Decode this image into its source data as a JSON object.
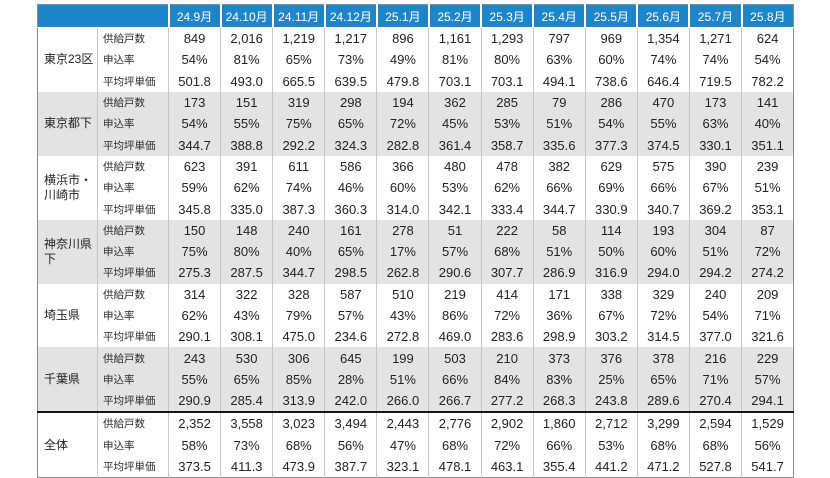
{
  "accent_colors": {
    "header_bg": "#1e86c8",
    "header_text": "#ffffff",
    "row_alt_bg": "#e3e3e3",
    "grid_line": "#c6c6c6",
    "total_separator": "#151515"
  },
  "chart_data": {
    "type": "table",
    "title": "",
    "columns": [
      "24.9月",
      "24.10月",
      "24.11月",
      "24.12月",
      "25.1月",
      "25.2月",
      "25.3月",
      "25.4月",
      "25.5月",
      "25.6月",
      "25.7月",
      "25.8月"
    ],
    "metrics": [
      {
        "key": "supply",
        "label": "供給戸数",
        "format": "int"
      },
      {
        "key": "rate",
        "label": "申込率",
        "format": "percent"
      },
      {
        "key": "price",
        "label": "平均坪単価",
        "format": "decimal1"
      }
    ],
    "groups": [
      {
        "id": "tokyo-23ku",
        "region": "東京23区",
        "is_total": false,
        "supply": [
          849,
          2016,
          1219,
          1217,
          896,
          1161,
          1293,
          797,
          969,
          1354,
          1271,
          624
        ],
        "rate": [
          54,
          81,
          65,
          73,
          49,
          81,
          80,
          63,
          60,
          74,
          74,
          54
        ],
        "price": [
          501.8,
          493.0,
          665.5,
          639.5,
          479.8,
          703.1,
          703.1,
          494.1,
          738.6,
          646.4,
          719.5,
          782.2
        ]
      },
      {
        "id": "tokyo-toka",
        "region": "東京都下",
        "is_total": false,
        "supply": [
          173,
          151,
          319,
          298,
          194,
          362,
          285,
          79,
          286,
          470,
          173,
          141
        ],
        "rate": [
          54,
          55,
          75,
          65,
          72,
          45,
          53,
          51,
          54,
          55,
          63,
          40
        ],
        "price": [
          344.7,
          388.8,
          292.2,
          324.3,
          282.8,
          361.4,
          358.7,
          335.6,
          377.3,
          374.5,
          330.1,
          351.1
        ]
      },
      {
        "id": "yokohama-kawasaki",
        "region": "横浜市・川崎市",
        "is_total": false,
        "supply": [
          623,
          391,
          611,
          586,
          366,
          480,
          478,
          382,
          629,
          575,
          390,
          239
        ],
        "rate": [
          59,
          62,
          74,
          46,
          60,
          53,
          62,
          66,
          69,
          66,
          67,
          51
        ],
        "price": [
          345.8,
          335.0,
          387.3,
          360.3,
          314.0,
          342.1,
          333.4,
          344.7,
          330.9,
          340.7,
          369.2,
          353.1
        ]
      },
      {
        "id": "kanagawa-kenka",
        "region": "神奈川県下",
        "is_total": false,
        "supply": [
          150,
          148,
          240,
          161,
          278,
          51,
          222,
          58,
          114,
          193,
          304,
          87
        ],
        "rate": [
          75,
          80,
          40,
          65,
          17,
          57,
          68,
          51,
          50,
          60,
          51,
          72
        ],
        "price": [
          275.3,
          287.5,
          344.7,
          298.5,
          262.8,
          290.6,
          307.7,
          286.9,
          316.9,
          294.0,
          294.2,
          274.2
        ]
      },
      {
        "id": "saitama",
        "region": "埼玉県",
        "is_total": false,
        "supply": [
          314,
          322,
          328,
          587,
          510,
          219,
          414,
          171,
          338,
          329,
          240,
          209
        ],
        "rate": [
          62,
          43,
          79,
          57,
          43,
          86,
          72,
          36,
          67,
          72,
          54,
          71
        ],
        "price": [
          290.1,
          308.1,
          475.0,
          234.6,
          272.8,
          469.0,
          283.6,
          298.9,
          303.2,
          314.5,
          377.0,
          321.6
        ]
      },
      {
        "id": "chiba",
        "region": "千葉県",
        "is_total": false,
        "supply": [
          243,
          530,
          306,
          645,
          199,
          503,
          210,
          373,
          376,
          378,
          216,
          229
        ],
        "rate": [
          55,
          65,
          85,
          28,
          51,
          66,
          84,
          83,
          25,
          65,
          71,
          57
        ],
        "price": [
          290.9,
          285.4,
          313.9,
          242.0,
          266.0,
          266.7,
          277.2,
          268.3,
          243.8,
          289.6,
          270.4,
          294.1
        ]
      },
      {
        "id": "zentai",
        "region": "全体",
        "is_total": true,
        "supply": [
          2352,
          3558,
          3023,
          3494,
          2443,
          2776,
          2902,
          1860,
          2712,
          3299,
          2594,
          1529
        ],
        "rate": [
          58,
          73,
          68,
          56,
          47,
          68,
          72,
          66,
          53,
          68,
          68,
          56
        ],
        "price": [
          373.5,
          411.3,
          473.9,
          387.7,
          323.1,
          478.1,
          463.1,
          355.4,
          441.2,
          471.2,
          527.8,
          541.7
        ]
      }
    ]
  }
}
